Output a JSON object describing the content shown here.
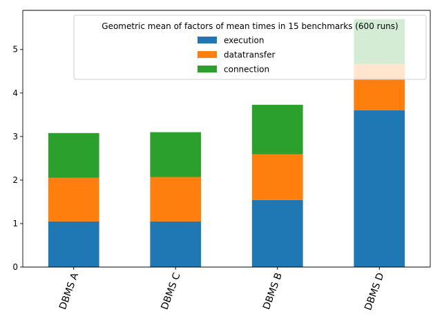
{
  "chart_data": {
    "type": "bar",
    "stacked": true,
    "categories": [
      "DBMS A",
      "DBMS C",
      "DBMS B",
      "DBMS D"
    ],
    "series": [
      {
        "name": "execution",
        "color": "#1f77b4",
        "values": [
          1.05,
          1.05,
          1.54,
          3.6
        ]
      },
      {
        "name": "datatransfer",
        "color": "#ff7f0e",
        "values": [
          1.0,
          1.02,
          1.05,
          1.07
        ]
      },
      {
        "name": "connection",
        "color": "#2ca02c",
        "values": [
          1.03,
          1.03,
          1.14,
          1.03
        ]
      }
    ],
    "legend_title": "Geometric mean of factors of mean times in 15 benchmarks (600 runs)",
    "legend_placement": "top-right",
    "ylim": [
      0,
      5.9
    ],
    "yticks": [
      0,
      1,
      2,
      3,
      4,
      5
    ],
    "xlabel": "",
    "ylabel": "",
    "grid": false,
    "x_tick_rotation_deg": 70
  }
}
